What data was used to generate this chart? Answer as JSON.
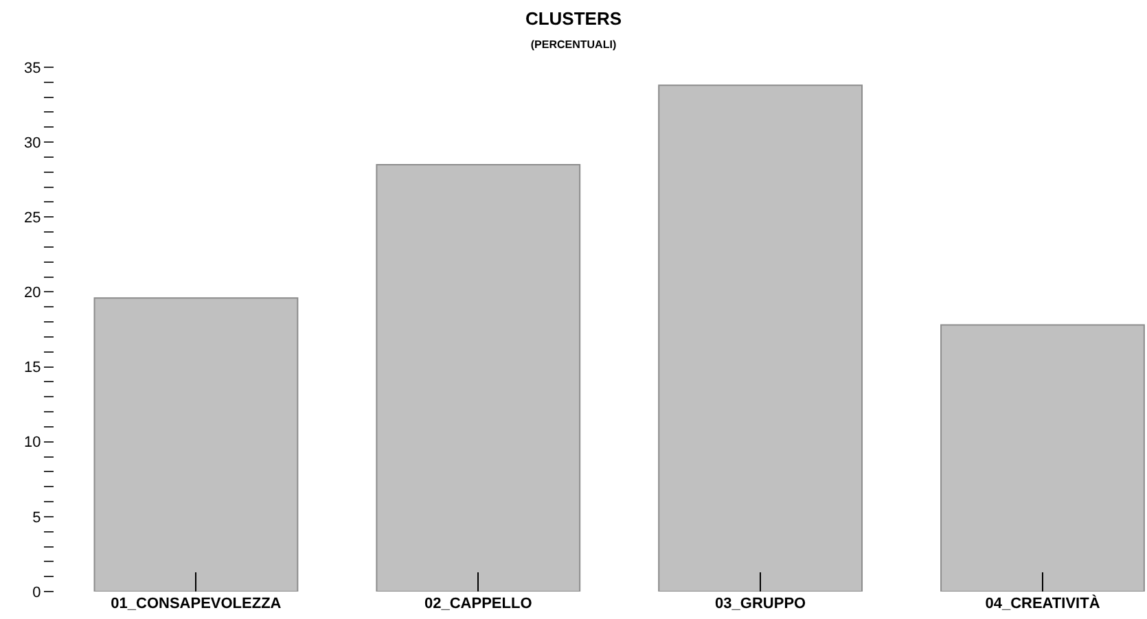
{
  "chart_data": {
    "type": "bar",
    "title": "CLUSTERS",
    "subtitle": "(PERCENTUALI)",
    "categories": [
      "01_CONSAPEVOLEZZA",
      "02_CAPPELLO",
      "03_GRUPPO",
      "04_CREATIVITÀ"
    ],
    "values": [
      19.6,
      28.5,
      33.8,
      17.8
    ],
    "color": "#c0c0c0",
    "ylim": [
      0,
      35
    ],
    "yticks": [
      0,
      {
        "value": 1,
        "label": null
      },
      {
        "value": 2,
        "label": null
      },
      {
        "value": 3,
        "label": null
      },
      {
        "value": 4,
        "label": null
      },
      5,
      {
        "value": 6,
        "label": null
      },
      {
        "value": 7,
        "label": null
      },
      {
        "value": 8,
        "label": null
      },
      {
        "value": 9,
        "label": null
      },
      10,
      {
        "value": 11,
        "label": null
      },
      {
        "value": 12,
        "label": null
      },
      {
        "value": 13,
        "label": null
      },
      {
        "value": 14,
        "label": null
      },
      15,
      {
        "value": 16,
        "label": null
      },
      {
        "value": 17,
        "label": null
      },
      {
        "value": 18,
        "label": null
      },
      {
        "value": 19,
        "label": null
      },
      20,
      {
        "value": 21,
        "label": null
      },
      {
        "value": 22,
        "label": null
      },
      {
        "value": 23,
        "label": null
      },
      {
        "value": 24,
        "label": null
      },
      25,
      {
        "value": 26,
        "label": null
      },
      {
        "value": 27,
        "label": null
      },
      {
        "value": 28,
        "label": null
      },
      {
        "value": 29,
        "label": null
      },
      30,
      {
        "value": 31,
        "label": null
      },
      {
        "value": 32,
        "label": null
      },
      {
        "value": 33,
        "label": null
      },
      {
        "value": 34,
        "label": null
      },
      35
    ],
    "ylabel": null
  }
}
